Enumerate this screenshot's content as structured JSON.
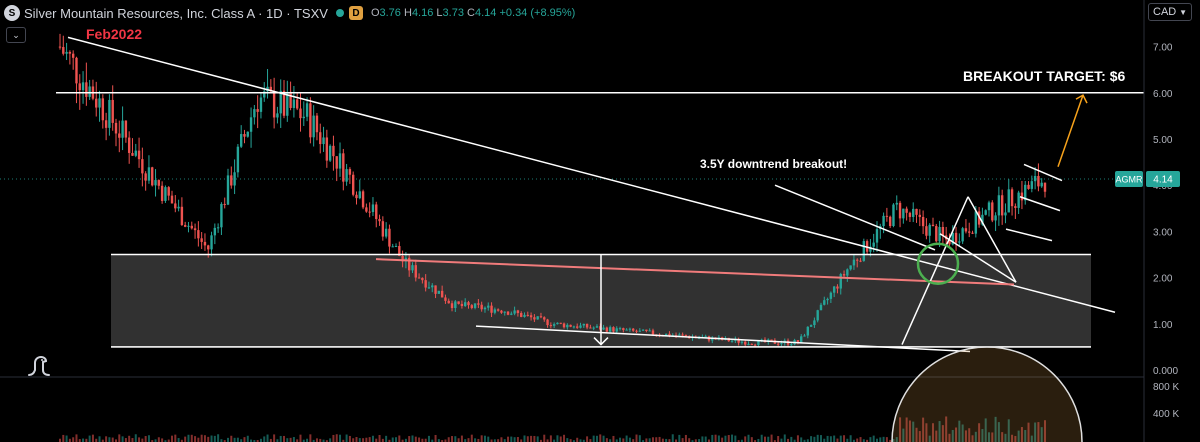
{
  "header": {
    "symbol_icon": "S",
    "title": "Silver Mountain Resources, Inc. Class A · 1D · TSXV",
    "data_badge": "D",
    "ohlc": {
      "o_label": "O",
      "o": "3.76",
      "h_label": "H",
      "h": "4.16",
      "l_label": "L",
      "l": "3.73",
      "c_label": "C",
      "c": "4.14",
      "change": "+0.34 (+8.95%)"
    },
    "currency": "CAD",
    "collapse_icon": "chevron-down-icon"
  },
  "colors": {
    "background": "#000000",
    "candle_up": "#26a69a",
    "candle_down": "#ef5350",
    "accent_red": "#f23645",
    "arrow_orange": "#f7a21b",
    "circle_green": "#4caf50"
  },
  "chart_data": {
    "type": "candlestick",
    "title": "Silver Mountain Resources, Inc. Class A · 1D · TSXV",
    "xlabel": "",
    "ylabel": "",
    "ylim": [
      0,
      7.4
    ],
    "yticks": [
      "7.00",
      "6.00",
      "5.00",
      "4.00",
      "3.00",
      "2.00",
      "1.00",
      "0.000"
    ],
    "volume_ticks": [
      "800 K",
      "400 K"
    ],
    "last_price": {
      "ticker": "AGMR",
      "value": "4.14"
    },
    "series": [
      {
        "type": "ohlc-summary",
        "values": [
          {
            "x": 0,
            "y": 7.0
          },
          {
            "x": 0.05,
            "y": 5.5
          },
          {
            "x": 0.1,
            "y": 4.0
          },
          {
            "x": 0.15,
            "y": 2.6
          },
          {
            "x": 0.2,
            "y": 5.9
          },
          {
            "x": 0.25,
            "y": 5.5
          },
          {
            "x": 0.3,
            "y": 4.0
          },
          {
            "x": 0.35,
            "y": 2.3
          },
          {
            "x": 0.4,
            "y": 1.4
          },
          {
            "x": 0.45,
            "y": 1.3
          },
          {
            "x": 0.5,
            "y": 1.0
          },
          {
            "x": 0.55,
            "y": 0.9
          },
          {
            "x": 0.6,
            "y": 0.8
          },
          {
            "x": 0.65,
            "y": 0.7
          },
          {
            "x": 0.7,
            "y": 0.6
          },
          {
            "x": 0.75,
            "y": 0.6
          },
          {
            "x": 0.8,
            "y": 2.2
          },
          {
            "x": 0.85,
            "y": 3.5
          },
          {
            "x": 0.9,
            "y": 2.8
          },
          {
            "x": 0.95,
            "y": 3.5
          },
          {
            "x": 1.0,
            "y": 4.14
          }
        ]
      }
    ],
    "annotations": [
      {
        "text": "Feb2022"
      },
      {
        "text": "BREAKOUT TARGET: $6"
      },
      {
        "text": "3.5Y downtrend breakout!"
      }
    ],
    "horizontal_levels": [
      6.0,
      2.5,
      0.5
    ],
    "range_box": [
      0.5,
      2.5
    ],
    "grid": false,
    "legend": "none"
  }
}
